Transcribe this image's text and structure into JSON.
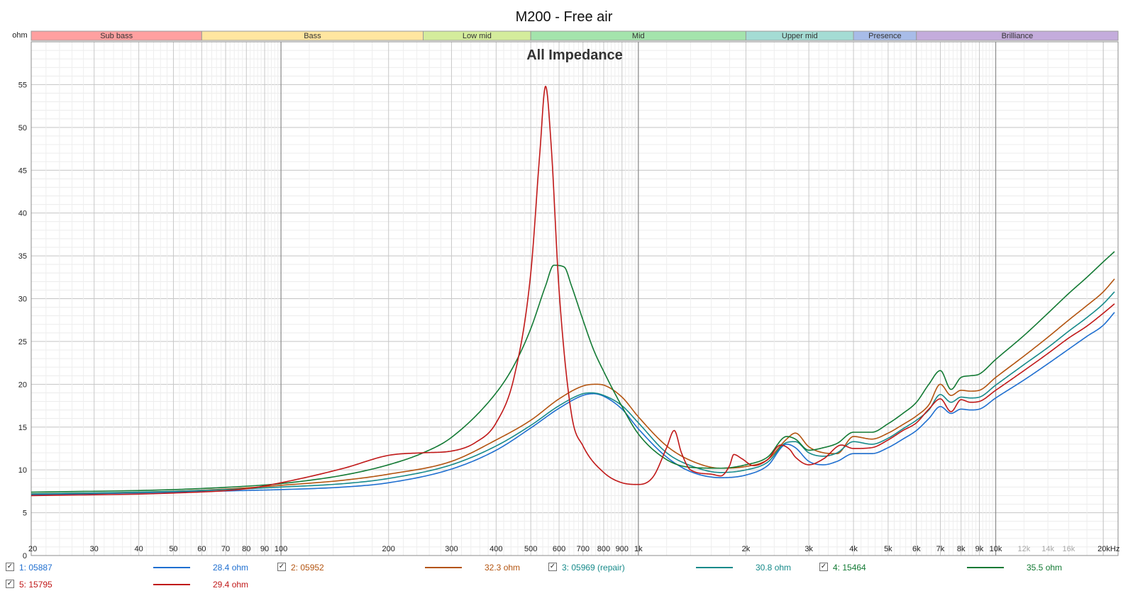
{
  "chart_data": {
    "type": "line",
    "title": "M200 - Free air",
    "subtitle": "All Impedance",
    "ylabel": "ohm",
    "xlabel": "",
    "x_scale": "log",
    "xlim": [
      20,
      22000
    ],
    "ylim": [
      0,
      60
    ],
    "grid": true,
    "y_ticks": [
      0,
      5,
      10,
      15,
      20,
      25,
      30,
      35,
      40,
      45,
      50,
      55
    ],
    "y_tick_labels": [
      "0",
      "5",
      "10",
      "15",
      "20",
      "25",
      "30",
      "35",
      "40",
      "45",
      "50",
      "55"
    ],
    "x_ticks": [
      {
        "v": 20,
        "label": "20"
      },
      {
        "v": 30,
        "label": "30"
      },
      {
        "v": 40,
        "label": "40"
      },
      {
        "v": 50,
        "label": "50"
      },
      {
        "v": 60,
        "label": "60"
      },
      {
        "v": 70,
        "label": "70"
      },
      {
        "v": 80,
        "label": "80"
      },
      {
        "v": 90,
        "label": "90"
      },
      {
        "v": 100,
        "label": "100"
      },
      {
        "v": 200,
        "label": "200"
      },
      {
        "v": 300,
        "label": "300"
      },
      {
        "v": 400,
        "label": "400"
      },
      {
        "v": 500,
        "label": "500"
      },
      {
        "v": 600,
        "label": "600"
      },
      {
        "v": 700,
        "label": "700"
      },
      {
        "v": 800,
        "label": "800"
      },
      {
        "v": 900,
        "label": "900"
      },
      {
        "v": 1000,
        "label": "1k"
      },
      {
        "v": 2000,
        "label": "2k"
      },
      {
        "v": 3000,
        "label": "3k"
      },
      {
        "v": 4000,
        "label": "4k"
      },
      {
        "v": 5000,
        "label": "5k"
      },
      {
        "v": 6000,
        "label": "6k"
      },
      {
        "v": 7000,
        "label": "7k"
      },
      {
        "v": 8000,
        "label": "8k"
      },
      {
        "v": 9000,
        "label": "9k"
      },
      {
        "v": 10000,
        "label": "10k"
      },
      {
        "v": 12000,
        "label": "12k",
        "faded": true
      },
      {
        "v": 14000,
        "label": "14k",
        "faded": true
      },
      {
        "v": 16000,
        "label": "16k",
        "faded": true
      },
      {
        "v": 20000,
        "label": "20kHz"
      }
    ],
    "bands": [
      {
        "label": "Sub bass",
        "from": 20,
        "to": 60,
        "color": "#ffa0a0"
      },
      {
        "label": "Bass",
        "from": 60,
        "to": 250,
        "color": "#ffe6a0"
      },
      {
        "label": "Low mid",
        "from": 250,
        "to": 500,
        "color": "#d4ec9c"
      },
      {
        "label": "Mid",
        "from": 500,
        "to": 2000,
        "color": "#a4e4ac"
      },
      {
        "label": "Upper mid",
        "from": 2000,
        "to": 4000,
        "color": "#a4dcd4"
      },
      {
        "label": "Presence",
        "from": 4000,
        "to": 6000,
        "color": "#a8bce8"
      },
      {
        "label": "Brilliance",
        "from": 6000,
        "to": 22000,
        "color": "#c4acdc"
      }
    ],
    "series": [
      {
        "name": "1: 05887",
        "color": "#1f6fd0",
        "value_label": "28.4 ohm",
        "checked": true,
        "points": [
          [
            20,
            7.1
          ],
          [
            50,
            7.4
          ],
          [
            80,
            7.6
          ],
          [
            100,
            7.7
          ],
          [
            150,
            8.0
          ],
          [
            200,
            8.5
          ],
          [
            300,
            10.1
          ],
          [
            400,
            12.3
          ],
          [
            500,
            14.9
          ],
          [
            600,
            17.2
          ],
          [
            700,
            18.7
          ],
          [
            750,
            18.9
          ],
          [
            800,
            18.6
          ],
          [
            900,
            17.1
          ],
          [
            1000,
            14.8
          ],
          [
            1200,
            11.5
          ],
          [
            1400,
            9.8
          ],
          [
            1700,
            9.1
          ],
          [
            2000,
            9.4
          ],
          [
            2300,
            10.5
          ],
          [
            2600,
            13.0
          ],
          [
            2750,
            12.6
          ],
          [
            3000,
            11.0
          ],
          [
            3300,
            10.6
          ],
          [
            3600,
            11.0
          ],
          [
            4000,
            11.9
          ],
          [
            4500,
            11.9
          ],
          [
            5000,
            12.6
          ],
          [
            5500,
            13.6
          ],
          [
            6000,
            14.6
          ],
          [
            6500,
            16.0
          ],
          [
            7000,
            17.4
          ],
          [
            7500,
            16.6
          ],
          [
            8000,
            17.1
          ],
          [
            8500,
            17.0
          ],
          [
            9000,
            17.1
          ],
          [
            10000,
            18.4
          ],
          [
            12000,
            20.5
          ],
          [
            14000,
            22.4
          ],
          [
            16000,
            24.1
          ],
          [
            18000,
            25.6
          ],
          [
            20000,
            26.9
          ],
          [
            21500,
            28.4
          ]
        ]
      },
      {
        "name": "2: 05952",
        "color": "#b35410",
        "value_label": "32.3 ohm",
        "checked": true,
        "points": [
          [
            20,
            7.2
          ],
          [
            50,
            7.5
          ],
          [
            80,
            7.9
          ],
          [
            100,
            8.2
          ],
          [
            150,
            8.8
          ],
          [
            200,
            9.5
          ],
          [
            300,
            11.0
          ],
          [
            400,
            13.5
          ],
          [
            500,
            15.8
          ],
          [
            600,
            18.3
          ],
          [
            700,
            19.8
          ],
          [
            760,
            20.0
          ],
          [
            800,
            19.9
          ],
          [
            900,
            18.5
          ],
          [
            1000,
            16.2
          ],
          [
            1200,
            12.8
          ],
          [
            1400,
            11.1
          ],
          [
            1700,
            10.2
          ],
          [
            2000,
            10.4
          ],
          [
            2300,
            11.2
          ],
          [
            2600,
            13.6
          ],
          [
            2750,
            14.3
          ],
          [
            3000,
            12.7
          ],
          [
            3300,
            12.0
          ],
          [
            3600,
            11.9
          ],
          [
            4000,
            13.9
          ],
          [
            4500,
            13.6
          ],
          [
            5000,
            14.3
          ],
          [
            5500,
            15.3
          ],
          [
            6000,
            16.3
          ],
          [
            6500,
            17.6
          ],
          [
            7000,
            20.0
          ],
          [
            7500,
            18.7
          ],
          [
            8000,
            19.3
          ],
          [
            8500,
            19.2
          ],
          [
            9000,
            19.3
          ],
          [
            10000,
            20.8
          ],
          [
            12000,
            23.3
          ],
          [
            14000,
            25.5
          ],
          [
            16000,
            27.5
          ],
          [
            18000,
            29.2
          ],
          [
            20000,
            30.8
          ],
          [
            21500,
            32.3
          ]
        ]
      },
      {
        "name": "3: 05969 (repair)",
        "color": "#168a8a",
        "value_label": "30.8 ohm",
        "checked": true,
        "points": [
          [
            20,
            7.2
          ],
          [
            50,
            7.5
          ],
          [
            80,
            7.8
          ],
          [
            100,
            8.0
          ],
          [
            150,
            8.4
          ],
          [
            200,
            9.0
          ],
          [
            300,
            10.6
          ],
          [
            400,
            12.8
          ],
          [
            500,
            15.2
          ],
          [
            600,
            17.5
          ],
          [
            700,
            18.9
          ],
          [
            740,
            19.0
          ],
          [
            800,
            18.7
          ],
          [
            900,
            17.5
          ],
          [
            1000,
            15.5
          ],
          [
            1200,
            12.0
          ],
          [
            1400,
            10.5
          ],
          [
            1700,
            9.7
          ],
          [
            2000,
            10.0
          ],
          [
            2300,
            10.9
          ],
          [
            2600,
            13.2
          ],
          [
            2750,
            13.3
          ],
          [
            3000,
            12.0
          ],
          [
            3300,
            11.6
          ],
          [
            3600,
            12.0
          ],
          [
            4000,
            13.3
          ],
          [
            4500,
            13.0
          ],
          [
            5000,
            13.7
          ],
          [
            5500,
            14.8
          ],
          [
            6000,
            15.8
          ],
          [
            6500,
            17.0
          ],
          [
            7000,
            18.8
          ],
          [
            7500,
            17.9
          ],
          [
            8000,
            18.5
          ],
          [
            8500,
            18.4
          ],
          [
            9000,
            18.5
          ],
          [
            10000,
            19.9
          ],
          [
            12000,
            22.3
          ],
          [
            14000,
            24.3
          ],
          [
            16000,
            26.2
          ],
          [
            18000,
            27.8
          ],
          [
            20000,
            29.4
          ],
          [
            21500,
            30.8
          ]
        ]
      },
      {
        "name": "4: 15464",
        "color": "#137a34",
        "value_label": "35.5 ohm",
        "checked": true,
        "points": [
          [
            20,
            7.4
          ],
          [
            50,
            7.7
          ],
          [
            80,
            8.1
          ],
          [
            100,
            8.4
          ],
          [
            150,
            9.4
          ],
          [
            200,
            10.6
          ],
          [
            250,
            12.0
          ],
          [
            300,
            13.8
          ],
          [
            400,
            19.0
          ],
          [
            450,
            22.3
          ],
          [
            500,
            26.5
          ],
          [
            550,
            31.5
          ],
          [
            580,
            33.9
          ],
          [
            620,
            33.7
          ],
          [
            650,
            31.5
          ],
          [
            700,
            27.5
          ],
          [
            750,
            24.0
          ],
          [
            800,
            21.5
          ],
          [
            900,
            17.4
          ],
          [
            1000,
            14.2
          ],
          [
            1200,
            11.2
          ],
          [
            1400,
            10.3
          ],
          [
            1700,
            10.2
          ],
          [
            2000,
            10.6
          ],
          [
            2300,
            11.5
          ],
          [
            2600,
            13.9
          ],
          [
            2750,
            13.6
          ],
          [
            3000,
            12.3
          ],
          [
            3300,
            12.6
          ],
          [
            3600,
            13.1
          ],
          [
            4000,
            14.4
          ],
          [
            4500,
            14.4
          ],
          [
            5000,
            15.4
          ],
          [
            5500,
            16.6
          ],
          [
            6000,
            17.9
          ],
          [
            6500,
            20.0
          ],
          [
            7000,
            21.6
          ],
          [
            7500,
            19.4
          ],
          [
            8000,
            20.8
          ],
          [
            8500,
            21.0
          ],
          [
            9000,
            21.2
          ],
          [
            10000,
            22.9
          ],
          [
            12000,
            25.7
          ],
          [
            14000,
            28.3
          ],
          [
            16000,
            30.6
          ],
          [
            18000,
            32.5
          ],
          [
            20000,
            34.3
          ],
          [
            21500,
            35.5
          ]
        ]
      },
      {
        "name": "5: 15795",
        "color": "#c01818",
        "value_label": "29.4 ohm",
        "checked": true,
        "points": [
          [
            20,
            7.0
          ],
          [
            50,
            7.3
          ],
          [
            80,
            7.8
          ],
          [
            100,
            8.5
          ],
          [
            150,
            10.2
          ],
          [
            200,
            11.7
          ],
          [
            250,
            12.0
          ],
          [
            300,
            12.2
          ],
          [
            350,
            13.2
          ],
          [
            400,
            15.5
          ],
          [
            450,
            21.0
          ],
          [
            500,
            33.0
          ],
          [
            530,
            47.0
          ],
          [
            550,
            54.8
          ],
          [
            570,
            48.0
          ],
          [
            600,
            31.0
          ],
          [
            650,
            16.5
          ],
          [
            700,
            12.8
          ],
          [
            800,
            9.7
          ],
          [
            900,
            8.5
          ],
          [
            1000,
            8.3
          ],
          [
            1100,
            9.2
          ],
          [
            1200,
            12.6
          ],
          [
            1260,
            14.6
          ],
          [
            1320,
            12.0
          ],
          [
            1400,
            10.0
          ],
          [
            1600,
            9.5
          ],
          [
            1700,
            9.3
          ],
          [
            1800,
            10.5
          ],
          [
            1850,
            11.8
          ],
          [
            1950,
            11.3
          ],
          [
            2100,
            10.5
          ],
          [
            2300,
            11.2
          ],
          [
            2500,
            12.9
          ],
          [
            2650,
            12.4
          ],
          [
            2750,
            11.5
          ],
          [
            3000,
            10.6
          ],
          [
            3300,
            11.3
          ],
          [
            3700,
            12.9
          ],
          [
            4000,
            12.5
          ],
          [
            4500,
            12.6
          ],
          [
            5000,
            13.5
          ],
          [
            5500,
            14.6
          ],
          [
            6000,
            15.5
          ],
          [
            6500,
            17.1
          ],
          [
            7000,
            18.3
          ],
          [
            7500,
            16.8
          ],
          [
            8000,
            18.2
          ],
          [
            8500,
            17.9
          ],
          [
            9000,
            18.0
          ],
          [
            10000,
            19.3
          ],
          [
            12000,
            21.6
          ],
          [
            14000,
            23.6
          ],
          [
            16000,
            25.4
          ],
          [
            18000,
            26.8
          ],
          [
            20000,
            28.3
          ],
          [
            21500,
            29.4
          ]
        ]
      }
    ]
  }
}
